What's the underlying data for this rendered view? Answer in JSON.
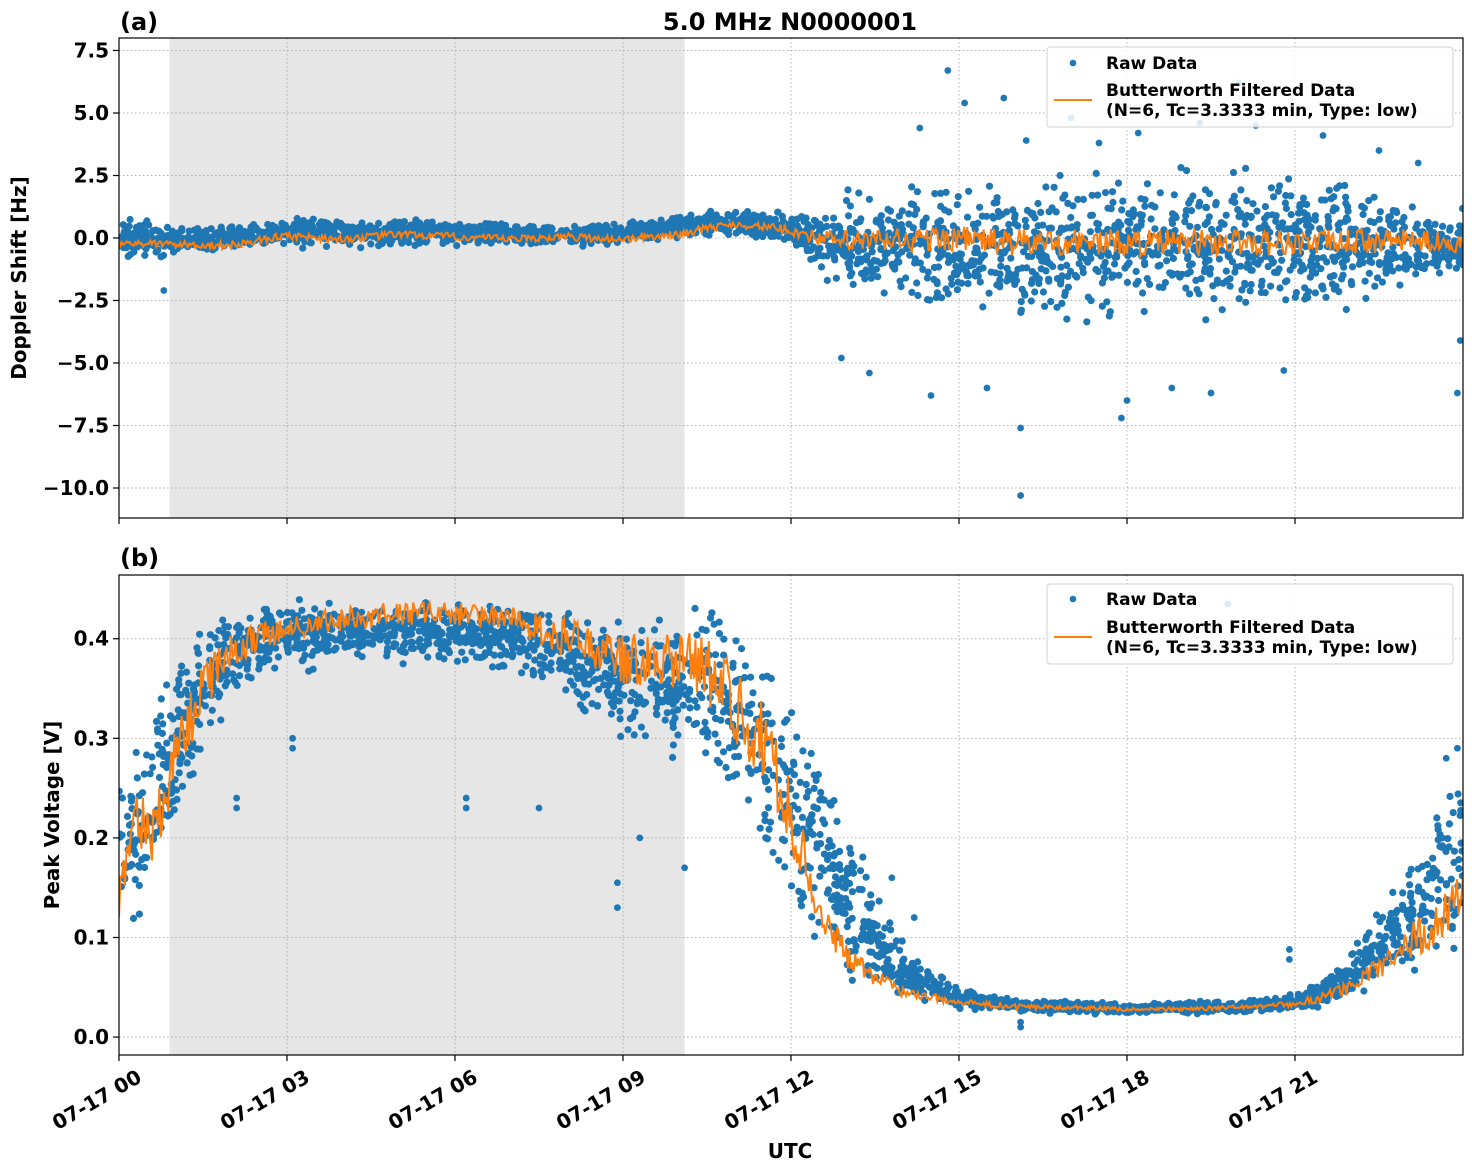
{
  "figure": {
    "title": "5.0 MHz N0000001",
    "xlabel": "UTC"
  },
  "chart_data": [
    {
      "panel_label": "(a)",
      "type": "scatter",
      "ylabel": "Doppler Shift [Hz]",
      "x_unit": "hours UTC since 07-17 00:00",
      "xlim": [
        0,
        24
      ],
      "ylim": [
        -11.2,
        8.0
      ],
      "yticks": [
        7.5,
        5.0,
        2.5,
        0.0,
        -2.5,
        -5.0,
        -7.5,
        -10.0
      ],
      "ytick_labels": [
        "7.5",
        "5.0",
        "2.5",
        "0.0",
        "−2.5",
        "−5.0",
        "−7.5",
        "−10.0"
      ],
      "xticks": [
        0,
        3,
        6,
        9,
        12,
        15,
        18,
        21
      ],
      "grid": true,
      "legend_position": "top-right",
      "shaded_span": [
        0.9,
        10.1
      ],
      "series": [
        {
          "name": "Raw Data",
          "kind": "scatter-band",
          "color": "#1f77b4",
          "x": [
            0,
            0.5,
            1,
            2,
            3,
            4,
            5,
            6,
            7,
            8,
            9,
            10,
            10.5,
            11,
            11.5,
            12,
            12.5,
            13,
            14,
            15,
            16,
            17,
            18,
            19,
            20,
            21,
            22,
            23,
            23.5,
            24
          ],
          "upper": [
            1.1,
            0.9,
            0.6,
            0.7,
            0.9,
            0.9,
            0.9,
            0.8,
            0.7,
            0.7,
            0.7,
            1.0,
            1.2,
            1.3,
            1.2,
            1.1,
            1.5,
            2.2,
            2.5,
            2.7,
            3.0,
            3.2,
            3.2,
            3.2,
            3.2,
            3.0,
            2.7,
            2.2,
            1.7,
            1.4
          ],
          "lower": [
            -1.1,
            -1.0,
            -0.8,
            -0.6,
            -0.5,
            -0.5,
            -0.4,
            -0.4,
            -0.4,
            -0.4,
            -0.3,
            -0.1,
            0.0,
            0.0,
            -0.2,
            -0.5,
            -1.5,
            -2.8,
            -3.2,
            -3.5,
            -3.8,
            -3.9,
            -3.9,
            -3.9,
            -3.8,
            -3.6,
            -3.3,
            -2.8,
            -2.2,
            -1.8
          ],
          "outliers": [
            {
              "x": 14.3,
              "y": 4.4
            },
            {
              "x": 15.8,
              "y": 5.6
            },
            {
              "x": 16.2,
              "y": 3.9
            },
            {
              "x": 17.0,
              "y": 4.8
            },
            {
              "x": 17.5,
              "y": 3.8
            },
            {
              "x": 18.2,
              "y": 4.2
            },
            {
              "x": 19.3,
              "y": 4.6
            },
            {
              "x": 20.3,
              "y": 4.5
            },
            {
              "x": 21.5,
              "y": 4.1
            },
            {
              "x": 22.5,
              "y": 3.5
            },
            {
              "x": 23.2,
              "y": 3.0
            },
            {
              "x": 16.1,
              "y": -7.6
            },
            {
              "x": 16.1,
              "y": -10.3
            },
            {
              "x": 17.9,
              "y": -7.2
            },
            {
              "x": 18.0,
              "y": -6.5
            },
            {
              "x": 14.5,
              "y": -6.3
            },
            {
              "x": 13.4,
              "y": -5.4
            },
            {
              "x": 15.5,
              "y": -6.0
            },
            {
              "x": 19.5,
              "y": -6.2
            },
            {
              "x": 20.8,
              "y": -5.3
            },
            {
              "x": 23.9,
              "y": -6.2
            },
            {
              "x": 23.95,
              "y": -4.1
            },
            {
              "x": 0.8,
              "y": -2.1
            },
            {
              "x": 12.9,
              "y": -4.8
            },
            {
              "x": 20.0,
              "y": 6.2
            },
            {
              "x": 14.8,
              "y": 6.7
            },
            {
              "x": 15.1,
              "y": 5.4
            },
            {
              "x": 18.8,
              "y": -6.0
            }
          ]
        },
        {
          "name": "Butterworth Filtered Data\n(N=6, Tc=3.3333 min, Type: low)",
          "kind": "line",
          "color": "#ff7f0e",
          "x": [
            0,
            1,
            2,
            3,
            4,
            5,
            6,
            7,
            8,
            9,
            10,
            10.5,
            11,
            11.5,
            12,
            12.5,
            13,
            14,
            15,
            16,
            17,
            18,
            19,
            20,
            21,
            22,
            23,
            24
          ],
          "y": [
            -0.2,
            -0.25,
            -0.3,
            0.1,
            -0.05,
            0.15,
            0.05,
            -0.05,
            0.05,
            -0.05,
            0.15,
            0.4,
            0.55,
            0.45,
            0.3,
            0.0,
            -0.15,
            -0.1,
            0.0,
            -0.2,
            -0.15,
            -0.2,
            -0.2,
            -0.15,
            -0.2,
            -0.15,
            -0.1,
            -0.2
          ],
          "noise_amp": [
            0.15,
            0.15,
            0.15,
            0.15,
            0.15,
            0.15,
            0.15,
            0.15,
            0.15,
            0.15,
            0.15,
            0.15,
            0.15,
            0.15,
            0.2,
            0.3,
            0.45,
            0.5,
            0.5,
            0.55,
            0.55,
            0.55,
            0.55,
            0.55,
            0.5,
            0.5,
            0.45,
            0.4
          ]
        }
      ]
    },
    {
      "panel_label": "(b)",
      "type": "scatter",
      "ylabel": "Peak Voltage [V]",
      "x_unit": "hours UTC since 07-17 00:00",
      "xlim": [
        0,
        24
      ],
      "ylim": [
        -0.018,
        0.464
      ],
      "yticks": [
        0.0,
        0.1,
        0.2,
        0.3,
        0.4
      ],
      "ytick_labels": [
        "0.0",
        "0.1",
        "0.2",
        "0.3",
        "0.4"
      ],
      "xticks": [
        0,
        3,
        6,
        9,
        12,
        15,
        18,
        21
      ],
      "xtick_labels": [
        "07-17 00",
        "07-17 03",
        "07-17 06",
        "07-17 09",
        "07-17 12",
        "07-17 15",
        "07-17 18",
        "07-17 21"
      ],
      "grid": true,
      "legend_position": "top-right",
      "shaded_span": [
        0.9,
        10.1
      ],
      "series": [
        {
          "name": "Raw Data",
          "kind": "scatter-band",
          "color": "#1f77b4",
          "x": [
            0,
            0.5,
            1,
            1.5,
            2,
            3,
            4,
            5,
            6,
            7,
            8,
            9,
            10,
            10.5,
            11,
            11.5,
            12,
            12.5,
            13,
            13.5,
            14,
            15,
            16,
            17,
            18,
            19,
            20,
            21,
            21.5,
            22,
            22.5,
            23,
            23.5,
            24
          ],
          "upper": [
            0.3,
            0.34,
            0.41,
            0.43,
            0.44,
            0.445,
            0.445,
            0.445,
            0.445,
            0.445,
            0.44,
            0.44,
            0.44,
            0.44,
            0.43,
            0.42,
            0.39,
            0.33,
            0.24,
            0.16,
            0.1,
            0.05,
            0.04,
            0.037,
            0.035,
            0.037,
            0.038,
            0.045,
            0.06,
            0.09,
            0.13,
            0.18,
            0.24,
            0.3
          ],
          "lower": [
            0.07,
            0.1,
            0.17,
            0.27,
            0.33,
            0.36,
            0.37,
            0.37,
            0.37,
            0.36,
            0.33,
            0.28,
            0.27,
            0.27,
            0.24,
            0.16,
            0.09,
            0.06,
            0.045,
            0.038,
            0.032,
            0.028,
            0.024,
            0.022,
            0.022,
            0.022,
            0.023,
            0.025,
            0.028,
            0.035,
            0.045,
            0.055,
            0.065,
            0.07
          ],
          "outliers": [
            {
              "x": 2.1,
              "y": 0.24
            },
            {
              "x": 2.1,
              "y": 0.23
            },
            {
              "x": 3.1,
              "y": 0.3
            },
            {
              "x": 3.1,
              "y": 0.29
            },
            {
              "x": 6.2,
              "y": 0.24
            },
            {
              "x": 6.2,
              "y": 0.23
            },
            {
              "x": 8.9,
              "y": 0.155
            },
            {
              "x": 8.9,
              "y": 0.13
            },
            {
              "x": 10.1,
              "y": 0.17
            },
            {
              "x": 16.1,
              "y": 0.01
            },
            {
              "x": 16.1,
              "y": 0.015
            },
            {
              "x": 20.9,
              "y": 0.088
            },
            {
              "x": 20.9,
              "y": 0.078
            },
            {
              "x": 19.8,
              "y": 0.435
            },
            {
              "x": 23.9,
              "y": 0.29
            },
            {
              "x": 23.7,
              "y": 0.28
            },
            {
              "x": 13.8,
              "y": 0.16
            },
            {
              "x": 14.2,
              "y": 0.12
            },
            {
              "x": 7.5,
              "y": 0.23
            },
            {
              "x": 9.3,
              "y": 0.2
            }
          ]
        },
        {
          "name": "Butterworth Filtered Data\n(N=6, Tc=3.3333 min, Type: low)",
          "kind": "line",
          "color": "#ff7f0e",
          "x": [
            0,
            0.3,
            0.6,
            1,
            1.5,
            2,
            3,
            4,
            5,
            6,
            7,
            8,
            9,
            10,
            10.5,
            11,
            11.5,
            12,
            12.5,
            13,
            13.5,
            14,
            15,
            16,
            17,
            18,
            19,
            20,
            21,
            21.5,
            22,
            22.5,
            23,
            23.5,
            24
          ],
          "y": [
            0.14,
            0.22,
            0.2,
            0.28,
            0.35,
            0.39,
            0.41,
            0.42,
            0.425,
            0.425,
            0.42,
            0.4,
            0.38,
            0.38,
            0.37,
            0.33,
            0.3,
            0.22,
            0.13,
            0.08,
            0.06,
            0.045,
            0.035,
            0.03,
            0.03,
            0.028,
            0.028,
            0.03,
            0.033,
            0.04,
            0.05,
            0.07,
            0.095,
            0.11,
            0.15
          ],
          "noise_amp": [
            0.02,
            0.03,
            0.03,
            0.03,
            0.025,
            0.02,
            0.012,
            0.012,
            0.012,
            0.012,
            0.012,
            0.02,
            0.025,
            0.03,
            0.035,
            0.04,
            0.04,
            0.035,
            0.02,
            0.012,
            0.008,
            0.005,
            0.003,
            0.003,
            0.002,
            0.002,
            0.002,
            0.002,
            0.003,
            0.005,
            0.008,
            0.012,
            0.018,
            0.02,
            0.025
          ]
        }
      ]
    }
  ]
}
